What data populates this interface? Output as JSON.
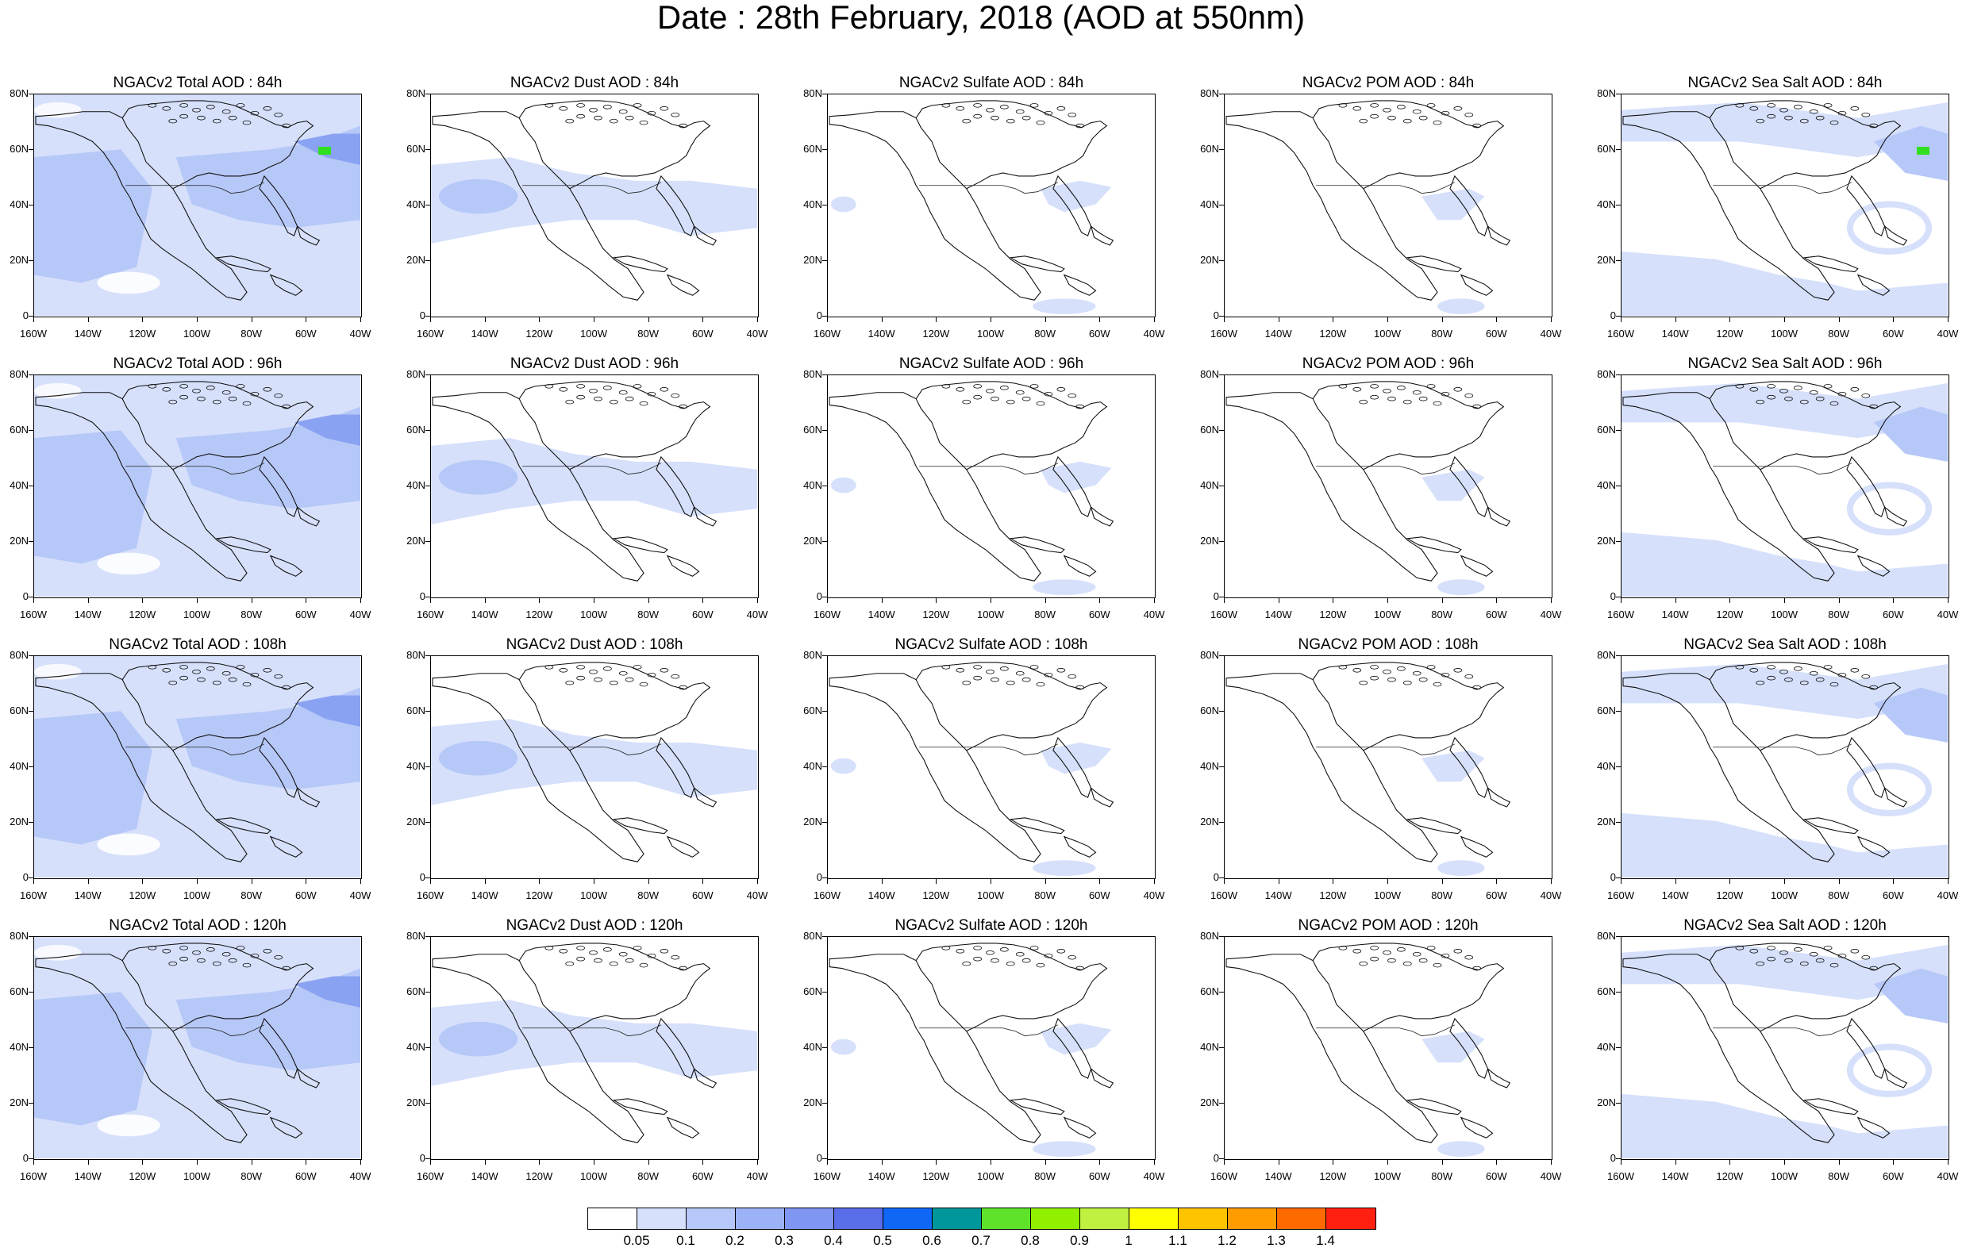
{
  "title": "Date : 28th February, 2018 (AOD at 550nm)",
  "panels": [
    [
      "NGACv2 Total AOD : 84h",
      "NGACv2 Dust AOD : 84h",
      "NGACv2 Sulfate AOD : 84h",
      "NGACv2 POM AOD : 84h",
      "NGACv2 Sea Salt AOD : 84h"
    ],
    [
      "NGACv2 Total AOD : 96h",
      "NGACv2 Dust AOD : 96h",
      "NGACv2 Sulfate AOD : 96h",
      "NGACv2 POM AOD : 96h",
      "NGACv2 Sea Salt AOD : 96h"
    ],
    [
      "NGACv2 Total AOD : 108h",
      "NGACv2 Dust AOD : 108h",
      "NGACv2 Sulfate AOD : 108h",
      "NGACv2 POM AOD : 108h",
      "NGACv2 Sea Salt AOD : 108h"
    ],
    [
      "NGACv2 Total AOD : 120h",
      "NGACv2 Dust AOD : 120h",
      "NGACv2 Sulfate AOD : 120h",
      "NGACv2 POM AOD : 120h",
      "NGACv2 Sea Salt  AOD : 120h"
    ]
  ],
  "lat_ticks": [
    "80N",
    "60N",
    "40N",
    "20N",
    "0"
  ],
  "lon_ticks": [
    "160W",
    "140W",
    "120W",
    "100W",
    "80W",
    "60W",
    "40W"
  ],
  "colorbar": {
    "labels": [
      "0.05",
      "0.1",
      "0.2",
      "0.3",
      "0.4",
      "0.5",
      "0.6",
      "0.7",
      "0.8",
      "0.9",
      "1",
      "1.1",
      "1.2",
      "1.3",
      "1.4"
    ],
    "colors": [
      "#ffffff",
      "#d6e0fb",
      "#b6c8f8",
      "#9cb2f7",
      "#7f96f2",
      "#5a6ee9",
      "#1066f5",
      "#00979a",
      "#5ee32a",
      "#90f000",
      "#c0f040",
      "#ffff00",
      "#ffc400",
      "#ff9c00",
      "#ff6a00",
      "#ff2010"
    ]
  },
  "colors": {
    "light": "#d6e0fb",
    "mid": "#b6c8f8",
    "dark": "#8aa2f2",
    "hotspot": "#30e020"
  }
}
